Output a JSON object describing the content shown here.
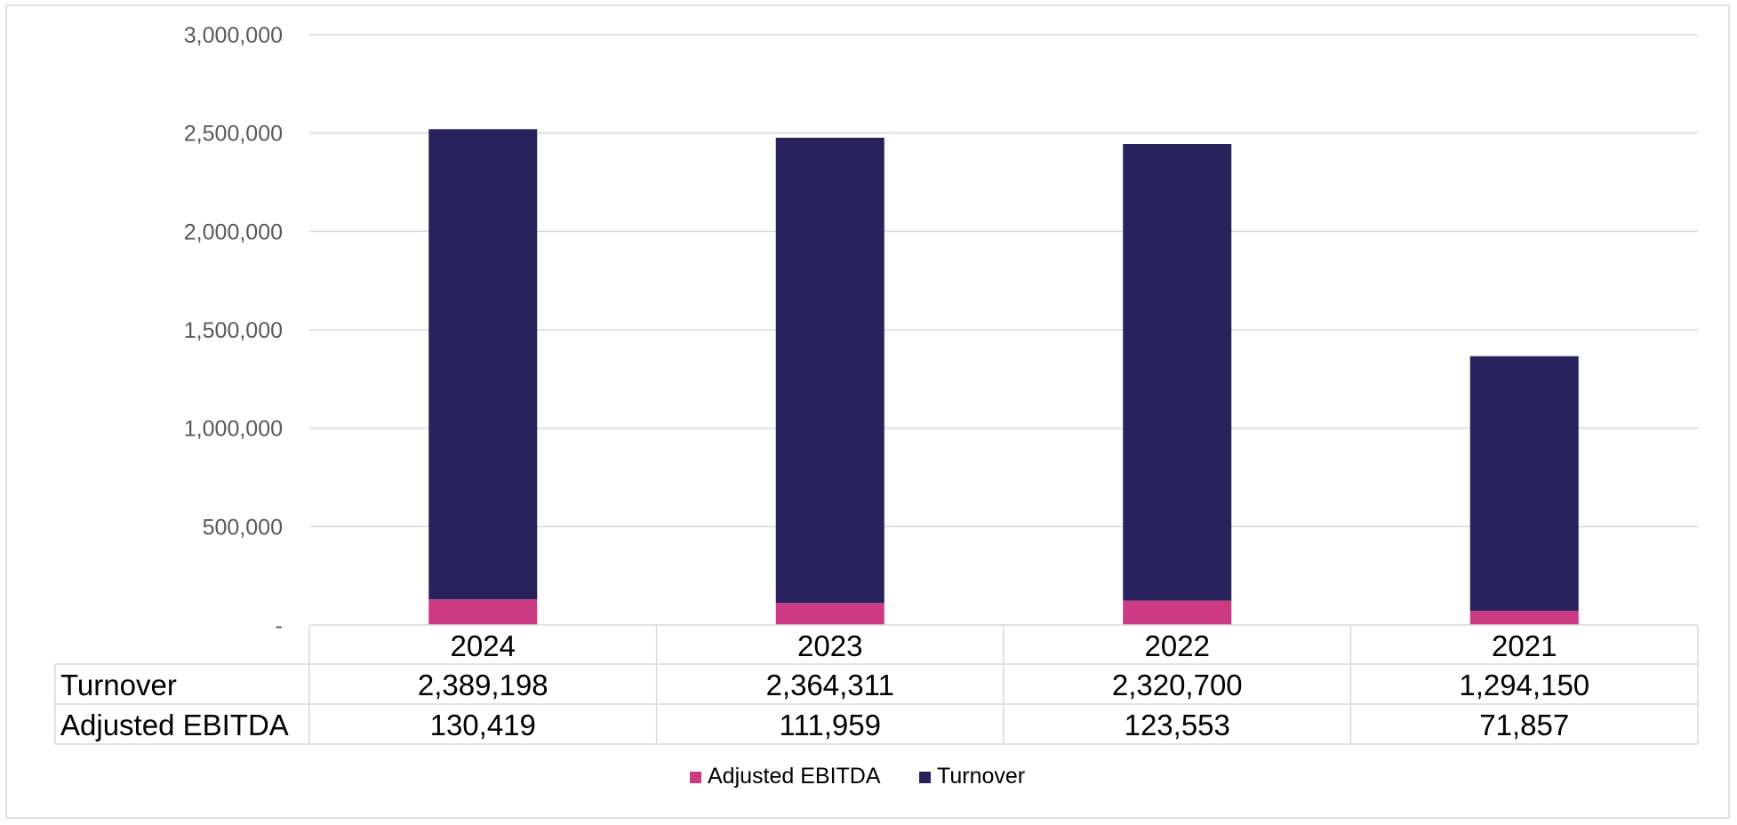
{
  "chart_data": {
    "type": "bar",
    "stacked": true,
    "categories": [
      "2024",
      "2023",
      "2022",
      "2021"
    ],
    "series": [
      {
        "name": "Adjusted EBITDA",
        "values": [
          130419,
          111959,
          123553,
          71857
        ],
        "color": "#cc3a84"
      },
      {
        "name": "Turnover",
        "values": [
          2389198,
          2364311,
          2320700,
          1294150
        ],
        "color": "#27225b"
      }
    ],
    "y_ticks": [
      {
        "value": 0,
        "label": "-"
      },
      {
        "value": 500000,
        "label": "500,000"
      },
      {
        "value": 1000000,
        "label": "1,000,000"
      },
      {
        "value": 1500000,
        "label": "1,500,000"
      },
      {
        "value": 2000000,
        "label": "2,000,000"
      },
      {
        "value": 2500000,
        "label": "2,500,000"
      },
      {
        "value": 3000000,
        "label": "3,000,000"
      }
    ],
    "ylim": [
      0,
      3000000
    ],
    "grid": true,
    "legend_position": "bottom",
    "data_table": {
      "rows": [
        {
          "label": "Turnover",
          "values": [
            "2,389,198",
            "2,364,311",
            "2,320,700",
            "1,294,150"
          ]
        },
        {
          "label": "Adjusted EBITDA",
          "values": [
            "130,419",
            "111,959",
            "123,553",
            "71,857"
          ]
        }
      ]
    }
  }
}
